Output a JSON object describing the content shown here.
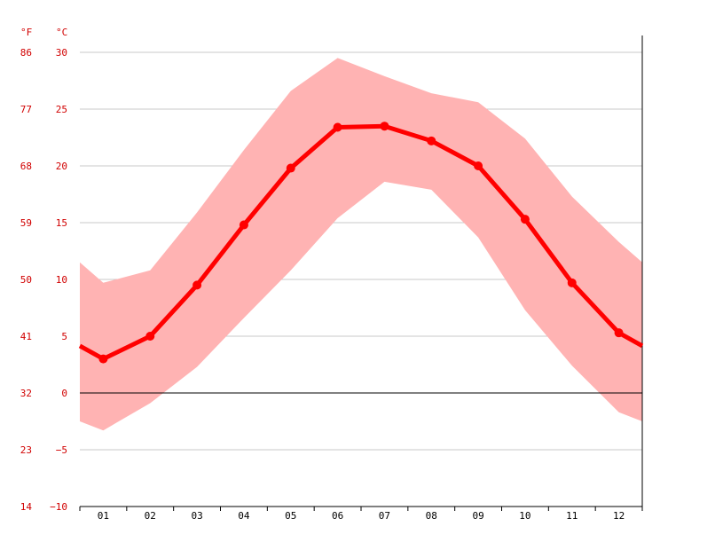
{
  "chart_data": {
    "type": "line",
    "units": {
      "left": "°F",
      "right": "°C"
    },
    "categories": [
      "01",
      "02",
      "03",
      "04",
      "05",
      "06",
      "07",
      "08",
      "09",
      "10",
      "11",
      "12"
    ],
    "c_ticks": [
      30,
      25,
      20,
      15,
      10,
      5,
      0,
      -5,
      -10
    ],
    "f_ticks": [
      86,
      77,
      68,
      59,
      50,
      41,
      32,
      23,
      14
    ],
    "ylim": [
      -10,
      30
    ],
    "grid": true,
    "zero_line": true,
    "series": [
      {
        "role": "mean",
        "values": [
          3.0,
          5.0,
          9.5,
          14.8,
          19.8,
          23.4,
          23.5,
          22.2,
          20.0,
          15.3,
          9.7,
          5.3
        ]
      },
      {
        "role": "max",
        "values": [
          9.7,
          10.8,
          15.9,
          21.4,
          26.6,
          29.5,
          27.9,
          26.4,
          25.6,
          22.4,
          17.3,
          13.3
        ]
      },
      {
        "role": "min",
        "values": [
          -3.3,
          -0.9,
          2.3,
          6.6,
          10.8,
          15.4,
          18.6,
          17.9,
          13.7,
          7.3,
          2.4,
          -1.7
        ]
      }
    ],
    "colors": {
      "line": "#ff0000",
      "band": "#ffb3b3",
      "grid": "#c8c8c8",
      "axis_text": "#d10000"
    }
  }
}
